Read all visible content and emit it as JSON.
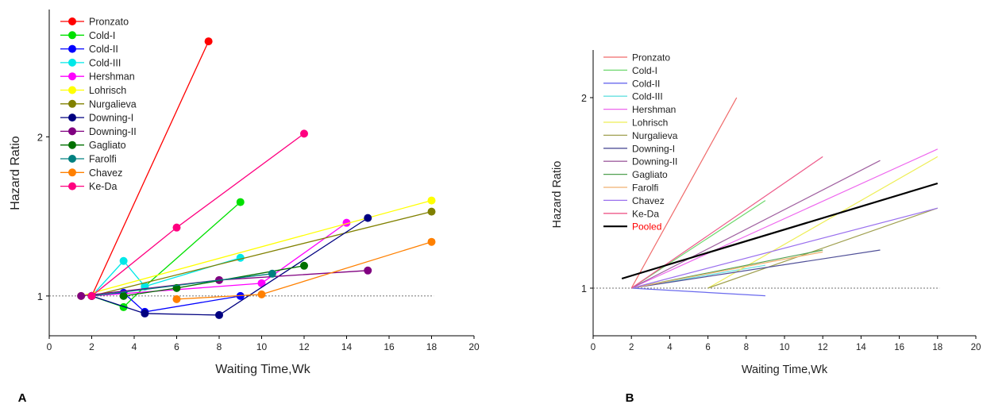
{
  "chart_data": [
    {
      "panel_label": "A",
      "type": "line",
      "xlabel": "Waiting Time,Wk",
      "ylabel": "Hazard Ratio",
      "xlim": [
        0,
        20
      ],
      "ylim": [
        0.75,
        2.8
      ],
      "xticks": [
        "0",
        "2",
        "4",
        "6",
        "8",
        "10",
        "12",
        "14",
        "16",
        "18",
        "20"
      ],
      "yticks": [
        {
          "value": 1,
          "label": "1"
        },
        {
          "value": 2,
          "label": "2"
        }
      ],
      "reference_line": 1,
      "legend_position": "top-left",
      "series": [
        {
          "name": "Pronzato",
          "color": "#ff0000",
          "points": [
            [
              2,
              1.0
            ],
            [
              7.5,
              2.6
            ]
          ]
        },
        {
          "name": "Cold-I",
          "color": "#00e000",
          "points": [
            [
              2,
              1.0
            ],
            [
              3.5,
              0.93
            ],
            [
              4.5,
              1.06
            ],
            [
              9,
              1.59
            ]
          ]
        },
        {
          "name": "Cold-II",
          "color": "#0000ff",
          "points": [
            [
              2,
              1.0
            ],
            [
              3.5,
              1.02
            ],
            [
              4.5,
              0.9
            ],
            [
              9,
              1.0
            ]
          ]
        },
        {
          "name": "Cold-III",
          "color": "#00e8e8",
          "points": [
            [
              2,
              1.0
            ],
            [
              3.5,
              1.22
            ],
            [
              4.5,
              1.06
            ],
            [
              9,
              1.24
            ]
          ]
        },
        {
          "name": "Hershman",
          "color": "#ff00ff",
          "points": [
            [
              2,
              1.0
            ],
            [
              10,
              1.08
            ],
            [
              14,
              1.46
            ]
          ]
        },
        {
          "name": "Lohrisch",
          "color": "#ffff00",
          "points": [
            [
              1.5,
              1.0
            ],
            [
              18,
              1.6
            ]
          ]
        },
        {
          "name": "Nurgalieva",
          "color": "#808000",
          "points": [
            [
              2,
              1.0
            ],
            [
              18,
              1.53
            ]
          ]
        },
        {
          "name": "Downing-I",
          "color": "#000080",
          "points": [
            [
              2,
              1.0
            ],
            [
              4.5,
              0.89
            ],
            [
              8,
              0.88
            ],
            [
              15,
              1.49
            ]
          ]
        },
        {
          "name": "Downing-II",
          "color": "#800080",
          "points": [
            [
              1.5,
              1.0
            ],
            [
              8,
              1.1
            ],
            [
              15,
              1.16
            ]
          ]
        },
        {
          "name": "Gagliato",
          "color": "#007000",
          "points": [
            [
              3.5,
              1.0
            ],
            [
              6,
              1.05
            ],
            [
              12,
              1.19
            ]
          ]
        },
        {
          "name": "Farolfi",
          "color": "#008080",
          "points": [
            [
              2,
              1.0
            ],
            [
              10.5,
              1.14
            ]
          ]
        },
        {
          "name": "Chavez",
          "color": "#ff8000",
          "points": [
            [
              6,
              0.98
            ],
            [
              10,
              1.01
            ],
            [
              18,
              1.34
            ]
          ]
        },
        {
          "name": "Ke-Da",
          "color": "#ff0080",
          "points": [
            [
              2,
              1.0
            ],
            [
              6,
              1.43
            ],
            [
              12,
              2.02
            ]
          ]
        }
      ]
    },
    {
      "panel_label": "B",
      "type": "line",
      "xlabel": "Waiting Time,Wk",
      "ylabel": "Hazard Ratio",
      "xlim": [
        0,
        20
      ],
      "ylim": [
        0.75,
        2.25
      ],
      "xticks": [
        "0",
        "2",
        "4",
        "6",
        "8",
        "10",
        "12",
        "14",
        "16",
        "18",
        "20"
      ],
      "yticks": [
        {
          "value": 1,
          "label": "1"
        },
        {
          "value": 2,
          "label": "2"
        }
      ],
      "reference_line": 1,
      "legend_position": "top-left",
      "series": [
        {
          "name": "Pronzato",
          "color": "#f06a6a",
          "points": [
            [
              2,
              1.0
            ],
            [
              7.5,
              2.0
            ]
          ]
        },
        {
          "name": "Cold-I",
          "color": "#6ed86e",
          "points": [
            [
              2,
              1.0
            ],
            [
              9,
              1.46
            ]
          ]
        },
        {
          "name": "Cold-II",
          "color": "#6a6aee",
          "points": [
            [
              2,
              1.0
            ],
            [
              9,
              0.96
            ]
          ]
        },
        {
          "name": "Cold-III",
          "color": "#66e0e0",
          "points": [
            [
              2,
              1.0
            ],
            [
              9,
              1.12
            ]
          ]
        },
        {
          "name": "Hershman",
          "color": "#ee66ee",
          "points": [
            [
              2,
              1.0
            ],
            [
              18,
              1.73
            ]
          ]
        },
        {
          "name": "Lohrisch",
          "color": "#eeee55",
          "points": [
            [
              6,
              1.0
            ],
            [
              18,
              1.69
            ]
          ]
        },
        {
          "name": "Nurgalieva",
          "color": "#a0a050",
          "points": [
            [
              6,
              1.0
            ],
            [
              18,
              1.42
            ]
          ]
        },
        {
          "name": "Downing-I",
          "color": "#505098",
          "points": [
            [
              2,
              1.0
            ],
            [
              15,
              1.2
            ]
          ]
        },
        {
          "name": "Downing-II",
          "color": "#a060a0",
          "points": [
            [
              2,
              1.0
            ],
            [
              15,
              1.67
            ]
          ]
        },
        {
          "name": "Gagliato",
          "color": "#50a050",
          "points": [
            [
              2,
              1.0
            ],
            [
              12,
              1.2
            ]
          ]
        },
        {
          "name": "Farolfi",
          "color": "#f0b070",
          "points": [
            [
              2,
              1.0
            ],
            [
              12,
              1.19
            ]
          ]
        },
        {
          "name": "Chavez",
          "color": "#9a70ee",
          "points": [
            [
              2,
              1.0
            ],
            [
              18,
              1.42
            ]
          ]
        },
        {
          "name": "Ke-Da",
          "color": "#ee5a8a",
          "points": [
            [
              2,
              1.0
            ],
            [
              12,
              1.69
            ]
          ]
        },
        {
          "name": "Pooled",
          "color": "#000000",
          "label_color": "#ff0000",
          "thick": true,
          "points": [
            [
              1.5,
              1.05
            ],
            [
              18,
              1.55
            ]
          ]
        }
      ]
    }
  ]
}
